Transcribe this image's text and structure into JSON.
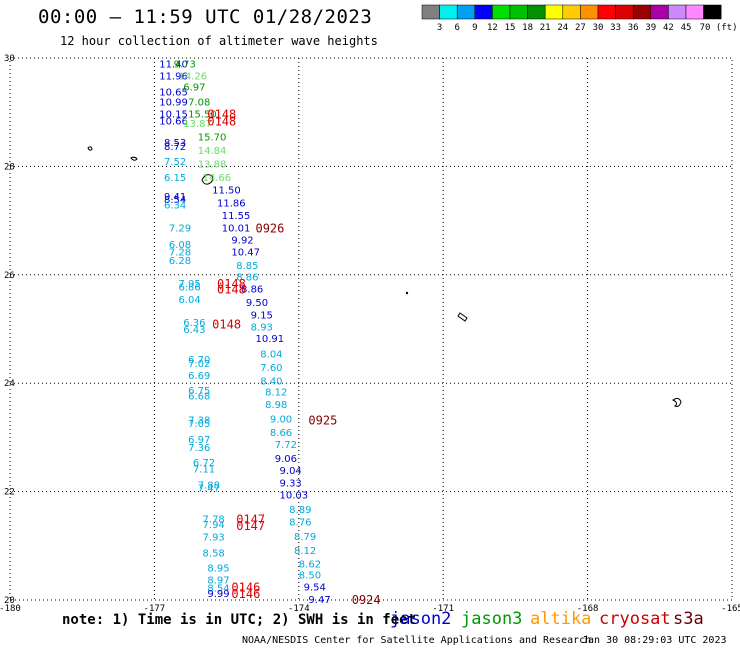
{
  "header": {
    "title": "00:00 – 11:59 UTC 01/28/2023",
    "subtitle": "12 hour collection of altimeter wave heights"
  },
  "footer": {
    "note": "note: 1) Time is in UTC; 2) SWH is in feet",
    "credit": "NOAA/NESDIS Center for Satellite Applications and Research",
    "timestamp": "Jan 30 08:29:03 UTC 2023"
  },
  "satellites": [
    {
      "name": "jason2",
      "color": "#0000cc"
    },
    {
      "name": "jason3",
      "color": "#009900"
    },
    {
      "name": "altika",
      "color": "#ff9900"
    },
    {
      "name": "cryosat",
      "color": "#cc0000"
    },
    {
      "name": "s3a",
      "color": "#660000"
    }
  ],
  "chart_data": {
    "type": "scatter",
    "title": "00:00 – 11:59 UTC 01/28/2023",
    "subtitle": "12 hour collection of altimeter wave heights",
    "xlim": [
      -180,
      -165
    ],
    "ylim": [
      20,
      30
    ],
    "xticks": [
      "-180",
      "-177",
      "-174",
      "-171",
      "-168",
      "-165"
    ],
    "yticks": [
      "20",
      "22",
      "24",
      "26",
      "28",
      "30"
    ],
    "grid": true,
    "colorbar": {
      "labels": [
        "3",
        "6",
        "9",
        "12",
        "15",
        "18",
        "21",
        "24",
        "27",
        "30",
        "33",
        "36",
        "39",
        "42",
        "45",
        "70 (ft)"
      ],
      "colors": [
        "#808080",
        "#00f0f0",
        "#00a0f0",
        "#0000ff",
        "#00e000",
        "#00c000",
        "#009000",
        "#ffff00",
        "#ffcc00",
        "#ff9000",
        "#ff0000",
        "#dd0000",
        "#990000",
        "#aa00aa",
        "#cc88ff",
        "#ff88ff",
        "#000000"
      ]
    },
    "points": [
      {
        "x": -176.9,
        "y": 29.9,
        "label": "11.40",
        "color": "#0000cc"
      },
      {
        "x": -176.6,
        "y": 29.9,
        "label": "9.73",
        "color": "#009900"
      },
      {
        "x": -176.9,
        "y": 29.68,
        "label": "11.96",
        "color": "#0000cc"
      },
      {
        "x": -176.5,
        "y": 29.68,
        "label": "14.26",
        "color": "#66dd66"
      },
      {
        "x": -176.4,
        "y": 29.47,
        "label": "6.97",
        "color": "#009900"
      },
      {
        "x": -176.9,
        "y": 29.38,
        "label": "10.65",
        "color": "#0000cc"
      },
      {
        "x": -176.9,
        "y": 29.2,
        "label": "10.99",
        "color": "#0000cc"
      },
      {
        "x": -176.3,
        "y": 29.2,
        "label": "7.08",
        "color": "#009900"
      },
      {
        "x": -176.9,
        "y": 28.98,
        "label": "10.15",
        "color": "#0000cc"
      },
      {
        "x": -176.3,
        "y": 28.98,
        "label": "15.50",
        "color": "#009900"
      },
      {
        "x": -176.9,
        "y": 28.85,
        "label": "10.66",
        "color": "#0000cc"
      },
      {
        "x": -176.4,
        "y": 28.8,
        "label": "13.87",
        "color": "#66dd66"
      },
      {
        "x": -176.1,
        "y": 28.55,
        "label": "15.70",
        "color": "#009900"
      },
      {
        "x": -176.8,
        "y": 28.45,
        "label": "8.53",
        "color": "#0000cc"
      },
      {
        "x": -176.8,
        "y": 28.38,
        "label": "8.72",
        "color": "#0000cc"
      },
      {
        "x": -176.1,
        "y": 28.3,
        "label": "14.84",
        "color": "#66dd66"
      },
      {
        "x": -176.8,
        "y": 28.1,
        "label": "7.52",
        "color": "#00aadd"
      },
      {
        "x": -176.1,
        "y": 28.05,
        "label": "13.88",
        "color": "#66dd66"
      },
      {
        "x": -176.8,
        "y": 27.8,
        "label": "6.15",
        "color": "#00aadd"
      },
      {
        "x": -176.0,
        "y": 27.8,
        "label": "14.66",
        "color": "#66dd66"
      },
      {
        "x": -175.8,
        "y": 27.57,
        "label": "11.50",
        "color": "#0000cc"
      },
      {
        "x": -176.8,
        "y": 27.45,
        "label": "9.41",
        "color": "#0000cc"
      },
      {
        "x": -176.8,
        "y": 27.4,
        "label": "8.54",
        "color": "#0000cc"
      },
      {
        "x": -176.8,
        "y": 27.3,
        "label": "6.34",
        "color": "#00aadd"
      },
      {
        "x": -175.7,
        "y": 27.33,
        "label": "11.86",
        "color": "#0000cc"
      },
      {
        "x": -175.6,
        "y": 27.1,
        "label": "11.55",
        "color": "#0000cc"
      },
      {
        "x": -176.7,
        "y": 26.87,
        "label": "7.29",
        "color": "#00aadd"
      },
      {
        "x": -175.6,
        "y": 26.87,
        "label": "10.01",
        "color": "#0000cc"
      },
      {
        "x": -175.4,
        "y": 26.65,
        "label": "9.92",
        "color": "#0000cc"
      },
      {
        "x": -176.7,
        "y": 26.57,
        "label": "6.08",
        "color": "#00aadd"
      },
      {
        "x": -176.7,
        "y": 26.43,
        "label": "7.28",
        "color": "#00aadd"
      },
      {
        "x": -175.4,
        "y": 26.43,
        "label": "10.47",
        "color": "#0000cc"
      },
      {
        "x": -176.7,
        "y": 26.27,
        "label": "6.28",
        "color": "#00aadd"
      },
      {
        "x": -175.3,
        "y": 26.18,
        "label": "8.85",
        "color": "#00aadd"
      },
      {
        "x": -175.3,
        "y": 25.97,
        "label": "8.86",
        "color": "#00aadd"
      },
      {
        "x": -176.5,
        "y": 25.85,
        "label": "7.95",
        "color": "#00aadd"
      },
      {
        "x": -176.5,
        "y": 25.78,
        "label": "6.86",
        "color": "#00aadd"
      },
      {
        "x": -175.2,
        "y": 25.75,
        "label": "8.86",
        "color": "#0000cc"
      },
      {
        "x": -176.5,
        "y": 25.55,
        "label": "6.04",
        "color": "#00aadd"
      },
      {
        "x": -175.1,
        "y": 25.5,
        "label": "9.50",
        "color": "#0000cc"
      },
      {
        "x": -175.0,
        "y": 25.27,
        "label": "9.15",
        "color": "#0000cc"
      },
      {
        "x": -176.4,
        "y": 25.13,
        "label": "6.36",
        "color": "#00aadd"
      },
      {
        "x": -175.0,
        "y": 25.05,
        "label": "8.93",
        "color": "#00aadd"
      },
      {
        "x": -176.4,
        "y": 25.0,
        "label": "6.43",
        "color": "#00aadd"
      },
      {
        "x": -174.9,
        "y": 24.83,
        "label": "10.91",
        "color": "#0000cc"
      },
      {
        "x": -174.8,
        "y": 24.55,
        "label": "8.04",
        "color": "#00aadd"
      },
      {
        "x": -176.3,
        "y": 24.45,
        "label": "6.70",
        "color": "#00aadd"
      },
      {
        "x": -176.3,
        "y": 24.37,
        "label": "7.02",
        "color": "#00aadd"
      },
      {
        "x": -174.8,
        "y": 24.3,
        "label": "7.60",
        "color": "#00aadd"
      },
      {
        "x": -176.3,
        "y": 24.15,
        "label": "6.69",
        "color": "#00aadd"
      },
      {
        "x": -174.8,
        "y": 24.05,
        "label": "8.40",
        "color": "#00aadd"
      },
      {
        "x": -176.3,
        "y": 23.87,
        "label": "6.75",
        "color": "#00aadd"
      },
      {
        "x": -174.7,
        "y": 23.85,
        "label": "8.12",
        "color": "#00aadd"
      },
      {
        "x": -176.3,
        "y": 23.77,
        "label": "6.68",
        "color": "#00aadd"
      },
      {
        "x": -174.7,
        "y": 23.62,
        "label": "8.98",
        "color": "#00aadd"
      },
      {
        "x": -176.3,
        "y": 23.33,
        "label": "7.38",
        "color": "#00aadd"
      },
      {
        "x": -176.3,
        "y": 23.27,
        "label": "7.05",
        "color": "#00aadd"
      },
      {
        "x": -174.6,
        "y": 23.35,
        "label": "9.00",
        "color": "#00aadd"
      },
      {
        "x": -174.6,
        "y": 23.1,
        "label": "8.66",
        "color": "#00aadd"
      },
      {
        "x": -176.3,
        "y": 22.97,
        "label": "6.97",
        "color": "#00aadd"
      },
      {
        "x": -176.3,
        "y": 22.82,
        "label": "7.36",
        "color": "#00aadd"
      },
      {
        "x": -174.5,
        "y": 22.88,
        "label": "7.72",
        "color": "#00aadd"
      },
      {
        "x": -174.5,
        "y": 22.62,
        "label": "9.06",
        "color": "#0000cc"
      },
      {
        "x": -176.2,
        "y": 22.55,
        "label": "6.72",
        "color": "#00aadd"
      },
      {
        "x": -176.2,
        "y": 22.43,
        "label": "7.11",
        "color": "#00aadd"
      },
      {
        "x": -174.4,
        "y": 22.4,
        "label": "9.04",
        "color": "#0000cc"
      },
      {
        "x": -174.4,
        "y": 22.17,
        "label": "9.33",
        "color": "#0000cc"
      },
      {
        "x": -176.1,
        "y": 22.13,
        "label": "7.88",
        "color": "#00aadd"
      },
      {
        "x": -176.1,
        "y": 22.08,
        "label": "7.47",
        "color": "#00aadd"
      },
      {
        "x": -174.4,
        "y": 21.95,
        "label": "10.03",
        "color": "#0000cc"
      },
      {
        "x": -174.2,
        "y": 21.68,
        "label": "8.89",
        "color": "#00aadd"
      },
      {
        "x": -176.0,
        "y": 21.5,
        "label": "7.78",
        "color": "#00aadd"
      },
      {
        "x": -176.0,
        "y": 21.4,
        "label": "7.94",
        "color": "#00aadd"
      },
      {
        "x": -174.2,
        "y": 21.45,
        "label": "8.76",
        "color": "#00aadd"
      },
      {
        "x": -176.0,
        "y": 21.17,
        "label": "7.93",
        "color": "#00aadd"
      },
      {
        "x": -174.1,
        "y": 21.18,
        "label": "8.79",
        "color": "#00aadd"
      },
      {
        "x": -176.0,
        "y": 20.88,
        "label": "8.58",
        "color": "#00aadd"
      },
      {
        "x": -174.1,
        "y": 20.92,
        "label": "8.12",
        "color": "#00aadd"
      },
      {
        "x": -174.0,
        "y": 20.67,
        "label": "8.62",
        "color": "#00aadd"
      },
      {
        "x": -175.9,
        "y": 20.6,
        "label": "8.95",
        "color": "#00aadd"
      },
      {
        "x": -174.0,
        "y": 20.47,
        "label": "8.50",
        "color": "#00aadd"
      },
      {
        "x": -175.9,
        "y": 20.38,
        "label": "8.97",
        "color": "#00aadd"
      },
      {
        "x": -175.9,
        "y": 20.23,
        "label": "8.54",
        "color": "#00aadd"
      },
      {
        "x": -173.9,
        "y": 20.25,
        "label": "9.54",
        "color": "#0000cc"
      },
      {
        "x": -175.9,
        "y": 20.13,
        "label": "9.99",
        "color": "#0000cc"
      },
      {
        "x": -173.8,
        "y": 20.02,
        "label": "9.47",
        "color": "#0000cc"
      }
    ],
    "pass_labels": [
      {
        "x": -175.9,
        "y": 28.98,
        "label": "0148",
        "color": "#dd0000"
      },
      {
        "x": -175.9,
        "y": 28.85,
        "label": "0148",
        "color": "#dd0000"
      },
      {
        "x": -174.9,
        "y": 26.87,
        "label": "0926",
        "color": "#880000"
      },
      {
        "x": -175.7,
        "y": 25.85,
        "label": "0148",
        "color": "#dd0000"
      },
      {
        "x": -175.7,
        "y": 25.75,
        "label": "0148",
        "color": "#dd0000"
      },
      {
        "x": -175.8,
        "y": 25.1,
        "label": "0148",
        "color": "#dd0000"
      },
      {
        "x": -173.8,
        "y": 23.33,
        "label": "0925",
        "color": "#880000"
      },
      {
        "x": -175.3,
        "y": 21.5,
        "label": "0147",
        "color": "#dd0000"
      },
      {
        "x": -175.3,
        "y": 21.38,
        "label": "0147",
        "color": "#dd0000"
      },
      {
        "x": -175.4,
        "y": 20.25,
        "label": "0146",
        "color": "#dd0000"
      },
      {
        "x": -175.4,
        "y": 20.13,
        "label": "0146",
        "color": "#dd0000"
      },
      {
        "x": -172.9,
        "y": 20.02,
        "label": "0924",
        "color": "#880000"
      }
    ]
  }
}
